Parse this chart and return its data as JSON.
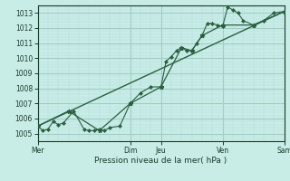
{
  "title": "",
  "xlabel": "Pression niveau de la mer( hPa )",
  "background_color": "#c8ece6",
  "grid_major_color": "#a0ccc4",
  "grid_minor_color": "#b8ddd8",
  "line_color": "#2a6040",
  "xlim": [
    0,
    24
  ],
  "ylim": [
    1004.5,
    1013.5
  ],
  "yticks": [
    1005,
    1006,
    1007,
    1008,
    1009,
    1010,
    1011,
    1012,
    1013
  ],
  "day_labels": [
    "Mer",
    "Dim",
    "Jeu",
    "Ven",
    "Sam"
  ],
  "day_positions": [
    0,
    9,
    12,
    18,
    24
  ],
  "series1_x": [
    0,
    0.5,
    1.0,
    1.5,
    2.0,
    2.5,
    3.5,
    4.5,
    5.0,
    5.5,
    6.0,
    6.5,
    7.0,
    8.0,
    9.0,
    10.0,
    11.0,
    12.0,
    12.5,
    13.0,
    13.5,
    14.0,
    14.5,
    15.0,
    15.5,
    16.0,
    16.5,
    17.0,
    17.5,
    18.0,
    18.5,
    19.0,
    19.5,
    20.0,
    21.0,
    22.0,
    23.0,
    24.0
  ],
  "series1_y": [
    1005.5,
    1005.2,
    1005.3,
    1005.8,
    1005.6,
    1005.7,
    1006.5,
    1005.3,
    1005.2,
    1005.2,
    1005.3,
    1005.2,
    1005.4,
    1005.5,
    1007.0,
    1007.7,
    1008.1,
    1008.1,
    1009.8,
    1010.1,
    1010.5,
    1010.7,
    1010.5,
    1010.5,
    1011.0,
    1011.5,
    1012.3,
    1012.3,
    1012.2,
    1012.1,
    1013.4,
    1013.2,
    1013.0,
    1012.5,
    1012.2,
    1012.5,
    1013.0,
    1013.1
  ],
  "series2_x": [
    0,
    3,
    6,
    9,
    12,
    14,
    15,
    16,
    18,
    21,
    24
  ],
  "series2_y": [
    1005.5,
    1006.5,
    1005.2,
    1007.0,
    1008.1,
    1010.7,
    1010.5,
    1011.5,
    1012.2,
    1012.2,
    1013.1
  ],
  "trend_x": [
    0,
    24
  ],
  "trend_y": [
    1005.5,
    1013.1
  ]
}
